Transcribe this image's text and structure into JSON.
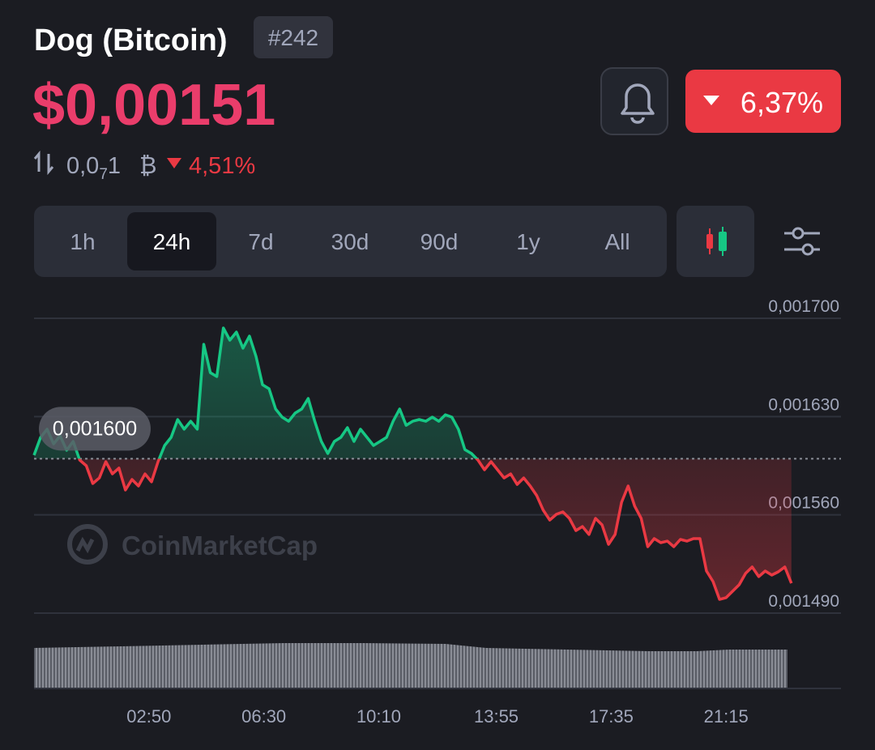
{
  "header": {
    "title": "Dog (Bitcoin)",
    "rank": "#242",
    "price": "$0,00151",
    "change_24h": "6,37%",
    "btc_price": {
      "lead": "0,0",
      "zeros": "7",
      "digit": "1",
      "symbol": "₿"
    },
    "btc_change": "4,51%"
  },
  "tabs": [
    "1h",
    "24h",
    "7d",
    "30d",
    "90d",
    "1y",
    "All"
  ],
  "active_tab": 1,
  "watermark": "CoinMarketCap",
  "chart_data": {
    "type": "line",
    "x": [
      -50,
      -37.5,
      -25,
      -12.5,
      0,
      12.5,
      25,
      37.5,
      50,
      62.5,
      75,
      87.5,
      100,
      112.5,
      125,
      137.5,
      150,
      162.5,
      175,
      187.5,
      200,
      212.5,
      225,
      237.5,
      250,
      262.5,
      275,
      287.5,
      300,
      312.5,
      325,
      337.5,
      350,
      362.5,
      375,
      387.5,
      400,
      412.5,
      425,
      437.5,
      450,
      462.5,
      475,
      487.5,
      500,
      512.5,
      525,
      537.5,
      550,
      562.5,
      575,
      587.5,
      600,
      612.5,
      625,
      637.5,
      650,
      662.5,
      675,
      687.5,
      700,
      712.5,
      725,
      737.5,
      750,
      762.5,
      775,
      787.5,
      800,
      812.5,
      825,
      837.5,
      850,
      862.5,
      875,
      887.5,
      900,
      912.5,
      925,
      937.5,
      950,
      962.5,
      975,
      987.5,
      1000,
      1012.5,
      1025,
      1037.5,
      1050,
      1062.5,
      1075,
      1087.5,
      1100,
      1112.5,
      1125,
      1137.5,
      1150,
      1162.5,
      1175,
      1187.5,
      1200,
      1212.5,
      1225,
      1237.5,
      1250,
      1262.5,
      1275,
      1287.5,
      1300,
      1312.5,
      1325,
      1337.5,
      1350,
      1362.5,
      1375,
      1387.5,
      1400
    ],
    "values": [
      0.0016025,
      0.0016152,
      0.001621,
      0.0016106,
      0.0016163,
      0.001606,
      0.0016123,
      0.001599,
      0.001595,
      0.0015823,
      0.0015863,
      0.0015979,
      0.0015892,
      0.0015933,
      0.0015777,
      0.0015852,
      0.0015806,
      0.0015892,
      0.0015835,
      0.0015979,
      0.0016094,
      0.0016152,
      0.0016279,
      0.001621,
      0.0016267,
      0.001621,
      0.0016815,
      0.0016613,
      0.0016585,
      0.0016931,
      0.0016844,
      0.0016902,
      0.0016787,
      0.0016873,
      0.0016729,
      0.0016527,
      0.0016498,
      0.0016354,
      0.0016296,
      0.0016267,
      0.0016325,
      0.0016354,
      0.0016429,
      0.0016267,
      0.0016123,
      0.0016037,
      0.0016123,
      0.0016152,
      0.0016221,
      0.0016123,
      0.001621,
      0.0016152,
      0.0016094,
      0.0016123,
      0.0016152,
      0.0016267,
      0.0016354,
      0.0016238,
      0.0016267,
      0.0016279,
      0.0016267,
      0.0016296,
      0.0016267,
      0.0016313,
      0.0016296,
      0.001621,
      0.0016065,
      0.0016037,
      0.001599,
      0.0015921,
      0.0015979,
      0.0015921,
      0.0015863,
      0.0015892,
      0.0015817,
      0.0015863,
      0.0015806,
      0.0015737,
      0.0015633,
      0.0015563,
      0.0015604,
      0.0015621,
      0.0015575,
      0.0015488,
      0.0015517,
      0.001546,
      0.0015575,
      0.0015529,
      0.001539,
      0.001546,
      0.001569,
      0.0015806,
      0.0015662,
      0.0015575,
      0.0015373,
      0.0015431,
      0.0015402,
      0.0015413,
      0.0015373,
      0.0015425,
      0.0015413,
      0.0015431,
      0.0015431,
      0.00152,
      0.0015125,
      0.0014998,
      0.001501,
      0.0015056,
      0.0015102,
      0.0015183,
      0.0015229,
      0.001516,
      0.00152,
      0.0015171,
      0.0015194,
      0.0015229,
      0.0015113
    ],
    "baseline": {
      "value": 0.0016,
      "label": "0,001600"
    },
    "colors": {
      "up": "#16c784",
      "down": "#ea3943"
    },
    "xlim": [
      -50,
      1495
    ],
    "xticks": [
      {
        "value": 170,
        "label": "02:50"
      },
      {
        "value": 390,
        "label": "06:30"
      },
      {
        "value": 610,
        "label": "10:10"
      },
      {
        "value": 835,
        "label": "13:55"
      },
      {
        "value": 1055,
        "label": "17:35"
      },
      {
        "value": 1275,
        "label": "21:15"
      }
    ],
    "ylim": [
      0.00149,
      0.0017
    ],
    "yticks": [
      {
        "value": 0.0017,
        "label": "0,001700"
      },
      {
        "value": 0.00163,
        "label": "0,001630"
      },
      {
        "value": 0.00156,
        "label": "0,001560"
      },
      {
        "value": 0.00149,
        "label": "0,001490"
      }
    ],
    "grid": true
  }
}
